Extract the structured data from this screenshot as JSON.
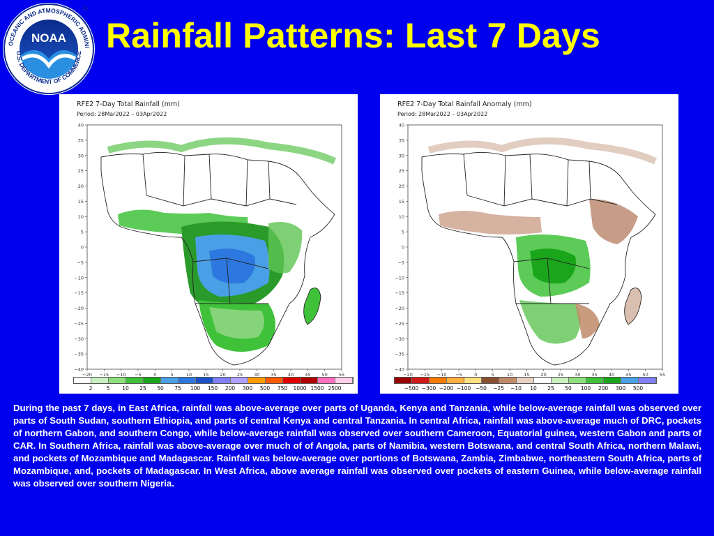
{
  "slide": {
    "title": "Rainfall Patterns: Last 7 Days",
    "description": "During the past 7 days, in East Africa, rainfall was above-average over parts of Uganda, Kenya and Tanzania, while below-average rainfall was observed over parts of South Sudan, southern Ethiopia, and parts of central Kenya and central Tanzania. In central Africa, rainfall was above-average much of DRC, pockets of northern Gabon, and southern Congo, while below-average rainfall was observed over southern Cameroon, Equatorial guinea, western Gabon and parts of CAR. In Southern Africa, rainfall was above-average over much of of Angola, parts of Namibia, western Botswana, and central South Africa, northern Malawi, and pockets of Mozambique and Madagascar. Rainfall was below-average over portions of Botswana, Zambia, Zimbabwe, northeastern South Africa, parts of Mozambique, and, pockets of Madagascar. In West Africa, above average rainfall was observed over pockets of eastern Guinea, while below-average rainfall was observed over southern Nigeria."
  },
  "logo": {
    "text": "NOAA",
    "ring_top": "NATIONAL OCEANIC AND ATMOSPHERIC ADMINISTRATION",
    "ring_bottom": "U.S. DEPARTMENT OF COMMERCE",
    "registered": "®"
  },
  "map_axes": {
    "lat_labels": [
      "40",
      "35",
      "30",
      "25",
      "20",
      "15",
      "10",
      "5",
      "0",
      "−5",
      "−10",
      "−15",
      "−20",
      "−25",
      "−30",
      "−35",
      "−40"
    ],
    "lon_labels": [
      "−20",
      "−15",
      "−10",
      "−5",
      "0",
      "5",
      "10",
      "15",
      "20",
      "25",
      "30",
      "35",
      "40",
      "45",
      "50",
      "55"
    ]
  },
  "maps": {
    "total": {
      "title": "RFE2 7-Day Total Rainfall (mm)",
      "period": "Period: 28Mar2022 – 03Apr2022",
      "scale_labels": [
        "2",
        "5",
        "10",
        "25",
        "50",
        "75",
        "100",
        "150",
        "200",
        "300",
        "500",
        "750",
        "1000",
        "1500",
        "2500"
      ],
      "scale_colors": [
        "#ffffff",
        "#c8f0c0",
        "#8ee07e",
        "#3fc23a",
        "#1aa51a",
        "#4aa0e6",
        "#2c78e0",
        "#1b50c8",
        "#8080ff",
        "#b0a0ff",
        "#ff9a00",
        "#ff5a00",
        "#e00000",
        "#b00000",
        "#ff70c0",
        "#ffd0e8"
      ]
    },
    "anomaly": {
      "title": "RFE2 7-Day Total Rainfall Anomaly (mm)",
      "period": "Period: 28Mar2022 – 03Apr2022",
      "scale_labels": [
        "−500",
        "−300",
        "−200",
        "−100",
        "−50",
        "−25",
        "−10",
        "10",
        "25",
        "50",
        "100",
        "200",
        "300",
        "500"
      ],
      "scale_colors": [
        "#9a0000",
        "#d01818",
        "#ff7a00",
        "#ffb040",
        "#ffe080",
        "#8a5030",
        "#c08a68",
        "#e8d2c4",
        "#ffffff",
        "#c8f0c0",
        "#8ee07e",
        "#3fc23a",
        "#1aa51a",
        "#4aa0e6",
        "#8080ff"
      ]
    }
  }
}
